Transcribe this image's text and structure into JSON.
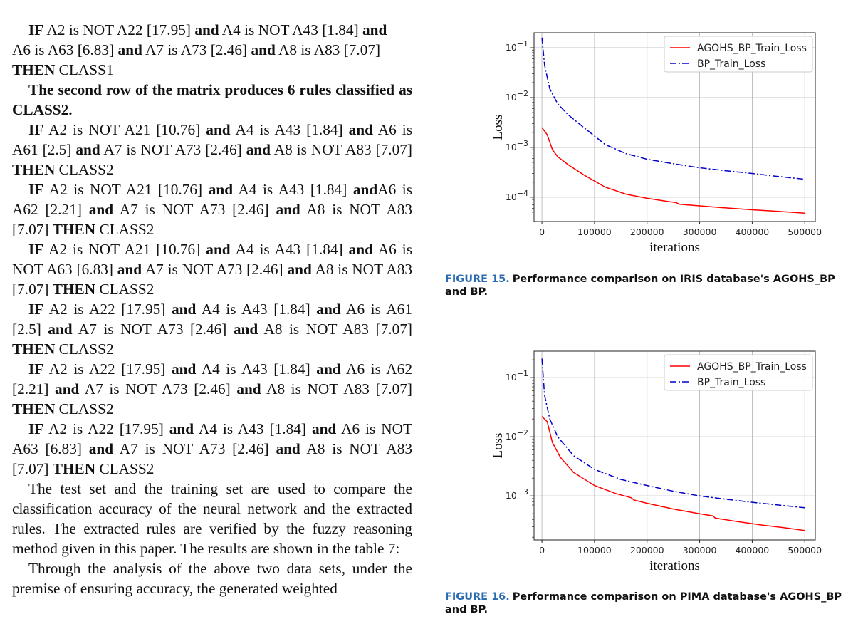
{
  "left_column": {
    "rule_row1_tail": {
      "lines": [
        [
          [
            "IF",
            true
          ],
          [
            " A2 is NOT A22 [17.95] ",
            false
          ],
          [
            "and",
            true
          ],
          [
            " A4 is NOT A43 [1.84] ",
            false
          ],
          [
            "and",
            true
          ]
        ],
        [
          [
            "A6 is A63 [6.83] ",
            false
          ],
          [
            "and",
            true
          ],
          [
            " A7 is A73 [2.46] ",
            false
          ],
          [
            "and",
            true
          ],
          [
            " A8 is A83 [7.07]",
            false
          ]
        ],
        [
          [
            "THEN",
            true
          ],
          [
            " CLASS1",
            false
          ]
        ]
      ]
    },
    "row2_heading": "The second row of the matrix produces 6 rules classified as CLASS2.",
    "rules": [
      [
        [
          "IF",
          true
        ],
        [
          " A2 is NOT A21 [10.76] ",
          false
        ],
        [
          "and",
          true
        ],
        [
          " A4 is A43 [1.84] ",
          false
        ],
        [
          "and",
          true
        ],
        [
          " A6 is A61 [2.5] ",
          false
        ],
        [
          "and",
          true
        ],
        [
          " A7 is NOT A73 [2.46] ",
          false
        ],
        [
          "and",
          true
        ],
        [
          " A8 is NOT A83 [7.07] ",
          false
        ],
        [
          "THEN",
          true
        ],
        [
          " CLASS2",
          false
        ]
      ],
      [
        [
          "IF",
          true
        ],
        [
          " A2 is NOT A21 [10.76] ",
          false
        ],
        [
          "and",
          true
        ],
        [
          " A4 is A43 [1.84] ",
          false
        ],
        [
          "and",
          true
        ],
        [
          "A6 is A62 [2.21] ",
          false
        ],
        [
          "and",
          true
        ],
        [
          " A7 is NOT A73 [2.46] ",
          false
        ],
        [
          "and",
          true
        ],
        [
          " A8 is NOT A83 [7.07] ",
          false
        ],
        [
          "THEN",
          true
        ],
        [
          " CLASS2",
          false
        ]
      ],
      [
        [
          "IF",
          true
        ],
        [
          " A2 is NOT A21 [10.76] ",
          false
        ],
        [
          "and",
          true
        ],
        [
          " A4 is A43 [1.84] ",
          false
        ],
        [
          "and",
          true
        ],
        [
          " A6 is NOT A63 [6.83] ",
          false
        ],
        [
          "and",
          true
        ],
        [
          " A7 is NOT A73 [2.46] ",
          false
        ],
        [
          "and",
          true
        ],
        [
          " A8 is NOT A83 [7.07] ",
          false
        ],
        [
          "THEN",
          true
        ],
        [
          " CLASS2",
          false
        ]
      ],
      [
        [
          "IF",
          true
        ],
        [
          " A2 is A22 [17.95] ",
          false
        ],
        [
          "and",
          true
        ],
        [
          " A4 is A43 [1.84] ",
          false
        ],
        [
          "and",
          true
        ],
        [
          " A6 is A61 [2.5] ",
          false
        ],
        [
          "and",
          true
        ],
        [
          " A7 is NOT A73 [2.46] ",
          false
        ],
        [
          "and",
          true
        ],
        [
          " A8 is NOT A83 [7.07] ",
          false
        ],
        [
          "THEN",
          true
        ],
        [
          " CLASS2",
          false
        ]
      ],
      [
        [
          "IF",
          true
        ],
        [
          " A2 is A22 [17.95] ",
          false
        ],
        [
          "and",
          true
        ],
        [
          " A4 is A43 [1.84] ",
          false
        ],
        [
          "and",
          true
        ],
        [
          " A6 is A62 [2.21] ",
          false
        ],
        [
          "and",
          true
        ],
        [
          " A7 is NOT A73 [2.46] ",
          false
        ],
        [
          "and",
          true
        ],
        [
          " A8 is NOT A83 [7.07] ",
          false
        ],
        [
          "THEN",
          true
        ],
        [
          " CLASS2",
          false
        ]
      ],
      [
        [
          "IF",
          true
        ],
        [
          " A2 is A22 [17.95] ",
          false
        ],
        [
          "and",
          true
        ],
        [
          " A4 is A43 [1.84] ",
          false
        ],
        [
          "and",
          true
        ],
        [
          " A6 is NOT A63 [6.83] ",
          false
        ],
        [
          "and",
          true
        ],
        [
          " A7 is NOT A73 [2.46] ",
          false
        ],
        [
          "and",
          true
        ],
        [
          " A8 is NOT A83 [7.07] ",
          false
        ],
        [
          "THEN",
          true
        ],
        [
          " CLASS2",
          false
        ]
      ]
    ],
    "paragraph_1": "The test set and the training set are used to compare the classification accuracy of the neural network and the extracted rules. The extracted rules are verified by the fuzzy reasoning method given in this paper. The results are shown in the table 7:",
    "paragraph_2": "Through the analysis of the above two data sets, under the premise of ensuring accuracy, the generated weighted"
  },
  "figures": [
    {
      "number": "FIGURE 15.",
      "caption": "Performance comparison on IRIS database's AGOHS_BP and BP."
    },
    {
      "number": "FIGURE 16.",
      "caption": "Performance comparison on PIMA database's AGOHS_BP and BP."
    }
  ],
  "chart_data": [
    {
      "type": "line",
      "xlabel": "iterations",
      "ylabel": "Loss",
      "yscale": "log",
      "xlim": [
        -15000,
        520000
      ],
      "ylim": [
        3.25e-05,
        0.2
      ],
      "xticks": [
        0,
        100000,
        200000,
        300000,
        400000,
        500000
      ],
      "xtick_labels": [
        "0",
        "100000",
        "200000",
        "300000",
        "400000",
        "500000"
      ],
      "yticks": [
        0.1,
        0.01,
        0.001,
        0.0001
      ],
      "ytick_exponents": [
        "−1",
        "−2",
        "−3",
        "−4"
      ],
      "grid": true,
      "legend_position": "top-right",
      "series": [
        {
          "name": "AGOHS_BP_Train_Loss",
          "color": "#ff0000",
          "style": "solid",
          "x": [
            0,
            10000,
            20000,
            30000,
            50000,
            80000,
            120000,
            160000,
            200000,
            240000,
            255000,
            262000,
            300000,
            350000,
            400000,
            450000,
            500000
          ],
          "y": [
            0.0025,
            0.0018,
            0.0009,
            0.00065,
            0.00045,
            0.00028,
            0.00016,
            0.000115,
            9.5e-05,
            8.2e-05,
            7.8e-05,
            7.2e-05,
            6.7e-05,
            6.1e-05,
            5.6e-05,
            5.2e-05,
            4.8e-05
          ]
        },
        {
          "name": "BP_Train_Loss",
          "color": "#0000cc",
          "style": "dashdot",
          "x": [
            0,
            5000,
            15000,
            30000,
            50000,
            80000,
            120000,
            160000,
            200000,
            250000,
            300000,
            350000,
            400000,
            450000,
            500000
          ],
          "y": [
            0.16,
            0.045,
            0.015,
            0.0075,
            0.0045,
            0.0025,
            0.00115,
            0.00075,
            0.00058,
            0.00047,
            0.00039,
            0.00034,
            0.0003,
            0.00026,
            0.00023
          ]
        }
      ]
    },
    {
      "type": "line",
      "xlabel": "iterations",
      "ylabel": "Loss",
      "yscale": "log",
      "xlim": [
        -15000,
        520000
      ],
      "ylim": [
        0.00018,
        0.28
      ],
      "xticks": [
        0,
        100000,
        200000,
        300000,
        400000,
        500000
      ],
      "xtick_labels": [
        "0",
        "100000",
        "200000",
        "300000",
        "400000",
        "500000"
      ],
      "yticks": [
        0.1,
        0.01,
        0.001
      ],
      "ytick_exponents": [
        "−1",
        "−2",
        "−3"
      ],
      "grid": true,
      "legend_position": "top-right",
      "series": [
        {
          "name": "AGOHS_BP_Train_Loss",
          "color": "#ff0000",
          "style": "solid",
          "x": [
            0,
            10000,
            20000,
            35000,
            60000,
            100000,
            140000,
            170000,
            175000,
            200000,
            250000,
            300000,
            325000,
            330000,
            370000,
            420000,
            460000,
            500000
          ],
          "y": [
            0.022,
            0.018,
            0.008,
            0.0045,
            0.0025,
            0.0015,
            0.0011,
            0.00093,
            0.00085,
            0.00075,
            0.0006,
            0.0005,
            0.00046,
            0.00042,
            0.00037,
            0.00032,
            0.00029,
            0.00026
          ]
        },
        {
          "name": "BP_Train_Loss",
          "color": "#0000cc",
          "style": "dashdot",
          "x": [
            0,
            5000,
            15000,
            30000,
            60000,
            100000,
            150000,
            200000,
            250000,
            300000,
            350000,
            400000,
            450000,
            500000
          ],
          "y": [
            0.21,
            0.05,
            0.02,
            0.01,
            0.0048,
            0.0028,
            0.0019,
            0.0015,
            0.0012,
            0.001,
            0.00088,
            0.00078,
            0.0007,
            0.00063
          ]
        }
      ]
    }
  ]
}
